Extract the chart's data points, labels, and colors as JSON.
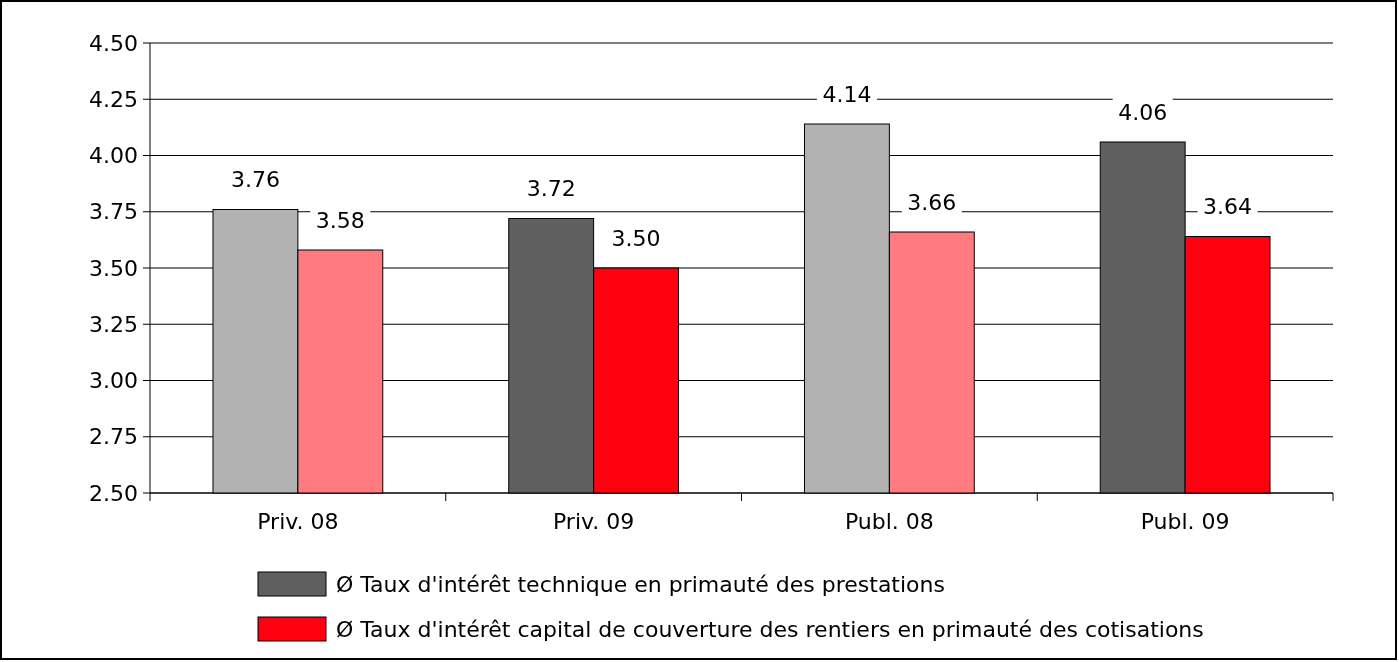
{
  "chart_data": {
    "type": "bar",
    "categories": [
      "Priv. 08",
      "Priv. 09",
      "Publ. 08",
      "Publ. 09"
    ],
    "series": [
      {
        "name": "Ø Taux d'intérêt technique en primauté des prestations",
        "color": "#5f5f5f",
        "colors": [
          "#b2b2b2",
          "#5f5f5f",
          "#b2b2b2",
          "#5f5f5f"
        ],
        "values": [
          3.76,
          3.72,
          4.14,
          4.06
        ],
        "value_labels": [
          "3.76",
          "3.72",
          "4.14",
          "4.06"
        ]
      },
      {
        "name": "Ø Taux d'intérêt capital de couverture des rentiers en primauté des cotisations",
        "color": "#ff0010",
        "colors": [
          "#ff7b80",
          "#ff0010",
          "#ff7b80",
          "#ff0010"
        ],
        "values": [
          3.58,
          3.5,
          3.66,
          3.64
        ],
        "value_labels": [
          "3.58",
          "3.50",
          "3.66",
          "3.64"
        ]
      }
    ],
    "ylim": [
      2.5,
      4.5
    ],
    "yticks": [
      "2.50",
      "2.75",
      "3.00",
      "3.25",
      "3.50",
      "3.75",
      "4.00",
      "4.25",
      "4.50"
    ],
    "grid": "y",
    "legend": "bottom"
  }
}
